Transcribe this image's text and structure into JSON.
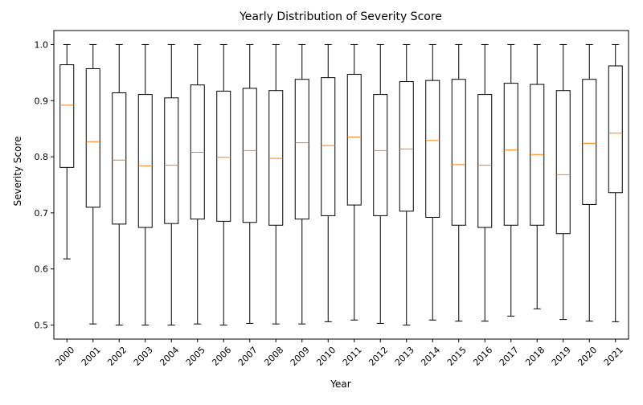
{
  "chart_data": {
    "type": "boxplot",
    "title": "Yearly Distribution of Severity Score",
    "xlabel": "Year",
    "ylabel": "Severity Score",
    "ylim": [
      0.475,
      1.025
    ],
    "yticks": [
      "0.5",
      "0.6",
      "0.7",
      "0.8",
      "0.9",
      "1.0"
    ],
    "ytick_values": [
      0.5,
      0.6,
      0.7,
      0.8,
      0.9,
      1.0
    ],
    "grid": false,
    "colors": {
      "box": "#000000",
      "median": "#ff7f0e",
      "whisker": "#000000"
    },
    "categories": [
      "2000",
      "2001",
      "2002",
      "2003",
      "2004",
      "2005",
      "2006",
      "2007",
      "2008",
      "2009",
      "2010",
      "2011",
      "2012",
      "2013",
      "2014",
      "2015",
      "2016",
      "2017",
      "2018",
      "2019",
      "2020",
      "2021"
    ],
    "boxes": [
      {
        "whislo": 0.618,
        "q1": 0.781,
        "med": 0.892,
        "q3": 0.964,
        "whishi": 1.0
      },
      {
        "whislo": 0.502,
        "q1": 0.71,
        "med": 0.827,
        "q3": 0.957,
        "whishi": 1.0
      },
      {
        "whislo": 0.5,
        "q1": 0.68,
        "med": 0.794,
        "q3": 0.914,
        "whishi": 1.0
      },
      {
        "whislo": 0.5,
        "q1": 0.674,
        "med": 0.784,
        "q3": 0.911,
        "whishi": 1.0
      },
      {
        "whislo": 0.5,
        "q1": 0.681,
        "med": 0.785,
        "q3": 0.905,
        "whishi": 1.0
      },
      {
        "whislo": 0.502,
        "q1": 0.689,
        "med": 0.808,
        "q3": 0.928,
        "whishi": 1.0
      },
      {
        "whislo": 0.5,
        "q1": 0.685,
        "med": 0.799,
        "q3": 0.917,
        "whishi": 1.0
      },
      {
        "whislo": 0.503,
        "q1": 0.683,
        "med": 0.811,
        "q3": 0.922,
        "whishi": 1.0
      },
      {
        "whislo": 0.502,
        "q1": 0.678,
        "med": 0.797,
        "q3": 0.918,
        "whishi": 1.0
      },
      {
        "whislo": 0.502,
        "q1": 0.689,
        "med": 0.825,
        "q3": 0.938,
        "whishi": 1.0
      },
      {
        "whislo": 0.506,
        "q1": 0.695,
        "med": 0.82,
        "q3": 0.941,
        "whishi": 1.0
      },
      {
        "whislo": 0.509,
        "q1": 0.714,
        "med": 0.835,
        "q3": 0.947,
        "whishi": 1.0
      },
      {
        "whislo": 0.503,
        "q1": 0.695,
        "med": 0.811,
        "q3": 0.911,
        "whishi": 1.0
      },
      {
        "whislo": 0.5,
        "q1": 0.703,
        "med": 0.814,
        "q3": 0.934,
        "whishi": 1.0
      },
      {
        "whislo": 0.509,
        "q1": 0.692,
        "med": 0.829,
        "q3": 0.936,
        "whishi": 1.0
      },
      {
        "whislo": 0.507,
        "q1": 0.678,
        "med": 0.786,
        "q3": 0.938,
        "whishi": 1.0
      },
      {
        "whislo": 0.507,
        "q1": 0.674,
        "med": 0.785,
        "q3": 0.911,
        "whishi": 1.0
      },
      {
        "whislo": 0.516,
        "q1": 0.678,
        "med": 0.812,
        "q3": 0.931,
        "whishi": 1.0
      },
      {
        "whislo": 0.529,
        "q1": 0.678,
        "med": 0.804,
        "q3": 0.929,
        "whishi": 1.0
      },
      {
        "whislo": 0.51,
        "q1": 0.663,
        "med": 0.768,
        "q3": 0.918,
        "whishi": 1.0
      },
      {
        "whislo": 0.507,
        "q1": 0.715,
        "med": 0.824,
        "q3": 0.938,
        "whishi": 1.0
      },
      {
        "whislo": 0.506,
        "q1": 0.736,
        "med": 0.842,
        "q3": 0.962,
        "whishi": 1.0
      }
    ]
  }
}
